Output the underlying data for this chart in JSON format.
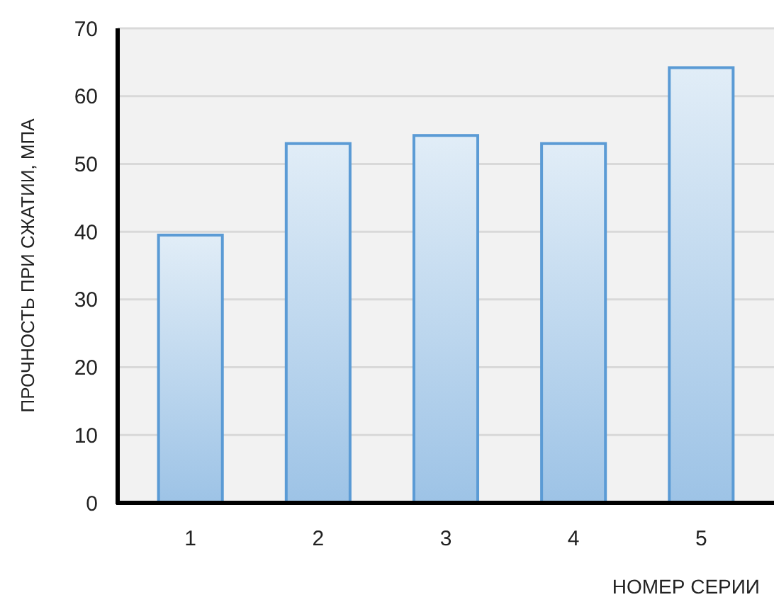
{
  "chart_data": {
    "type": "bar",
    "xlabel": "НОМЕР СЕРИИ",
    "ylabel": "ПРОЧНОСТЬ ПРИ СЖАТИИ, МПА",
    "categories": [
      "1",
      "2",
      "3",
      "4",
      "5"
    ],
    "values": [
      39.5,
      53,
      54.2,
      53,
      64.2
    ],
    "color": "#5b9bd5",
    "ylim": [
      0,
      70
    ],
    "yticks": [
      0,
      10,
      20,
      30,
      40,
      50,
      60,
      70
    ],
    "grid": "y"
  }
}
